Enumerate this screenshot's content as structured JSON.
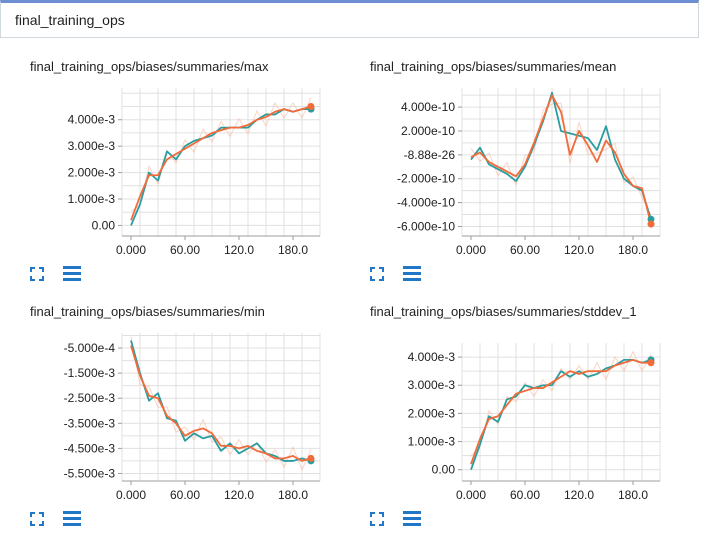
{
  "header": {
    "title": "final_training_ops"
  },
  "colors": {
    "teal": "#2a9d9f",
    "orange": "#f26b3a",
    "orange_faint": "#f7b79e",
    "grid": "#e0e0e0",
    "icon": "#2176c7"
  },
  "cards": [
    {
      "id": "max",
      "title": "final_training_ops/biases/summaries/max",
      "chart_data": {
        "type": "line",
        "x_ticks": [
          0,
          60,
          120,
          180
        ],
        "x_tick_labels": [
          "0.000",
          "60.00",
          "120.0",
          "180.0"
        ],
        "y_ticks": [
          0,
          0.001,
          0.002,
          0.003,
          0.004
        ],
        "y_tick_labels": [
          "0.00",
          "1.000e-3",
          "2.000e-3",
          "3.000e-3",
          "4.000e-3"
        ],
        "xlim": [
          -10,
          210
        ],
        "ylim": [
          -0.0004,
          0.0052
        ],
        "series": [
          {
            "color": "teal",
            "x": [
              0,
              10,
              20,
              30,
              40,
              50,
              60,
              70,
              80,
              90,
              100,
              110,
              120,
              130,
              140,
              150,
              160,
              170,
              180,
              190,
              200
            ],
            "y": [
              0.0,
              0.0008,
              0.002,
              0.0017,
              0.0028,
              0.0025,
              0.003,
              0.0032,
              0.0033,
              0.0034,
              0.0037,
              0.0037,
              0.0037,
              0.0037,
              0.004,
              0.0042,
              0.0042,
              0.0044,
              0.0043,
              0.0044,
              0.0044
            ]
          },
          {
            "color": "orange",
            "x": [
              0,
              10,
              20,
              30,
              40,
              50,
              60,
              70,
              80,
              90,
              100,
              110,
              120,
              130,
              140,
              150,
              160,
              170,
              180,
              190,
              200
            ],
            "y": [
              0.0002,
              0.0011,
              0.0019,
              0.0019,
              0.0025,
              0.0027,
              0.0029,
              0.0031,
              0.0033,
              0.0035,
              0.0036,
              0.0037,
              0.0037,
              0.0038,
              0.004,
              0.0041,
              0.0043,
              0.0044,
              0.0043,
              0.0044,
              0.0045
            ]
          }
        ]
      }
    },
    {
      "id": "mean",
      "title": "final_training_ops/biases/summaries/mean",
      "chart_data": {
        "type": "line",
        "x_ticks": [
          0,
          60,
          120,
          180
        ],
        "x_tick_labels": [
          "0.000",
          "60.00",
          "120.0",
          "180.0"
        ],
        "y_ticks": [
          4e-10,
          2e-10,
          0,
          -2e-10,
          -4e-10,
          -6e-10
        ],
        "y_tick_labels": [
          "4.000e-10",
          "2.000e-10",
          "-8.88e-26",
          "-2.000e-10",
          "-4.000e-10",
          "-6.000e-10"
        ],
        "xlim": [
          -10,
          210
        ],
        "ylim": [
          -6.8e-10,
          5.6e-10
        ],
        "series": [
          {
            "color": "teal",
            "x": [
              0,
              10,
              20,
              30,
              40,
              50,
              60,
              70,
              80,
              90,
              100,
              110,
              120,
              130,
              140,
              150,
              160,
              170,
              180,
              190,
              200
            ],
            "y": [
              -4e-11,
              6e-11,
              -8e-11,
              -1.2e-10,
              -1.6e-10,
              -2.2e-10,
              -1e-10,
              8e-11,
              2.8e-10,
              5.2e-10,
              2e-10,
              1.8e-10,
              1.6e-10,
              1.4e-10,
              4e-11,
              2.4e-10,
              -4e-11,
              -2e-10,
              -2.6e-10,
              -3e-10,
              -5.4e-10
            ]
          },
          {
            "color": "orange",
            "x": [
              0,
              10,
              20,
              30,
              40,
              50,
              60,
              70,
              80,
              90,
              100,
              110,
              120,
              130,
              140,
              150,
              160,
              170,
              180,
              190,
              200
            ],
            "y": [
              -2e-11,
              2e-11,
              -6e-11,
              -1e-10,
              -1.4e-10,
              -1.8e-10,
              -8e-11,
              1e-10,
              3e-10,
              5e-10,
              3.6e-10,
              0.0,
              2e-10,
              8e-11,
              -6e-11,
              1.2e-10,
              2e-11,
              -1.6e-10,
              -2.6e-10,
              -2.8e-10,
              -5.8e-10
            ]
          }
        ]
      }
    },
    {
      "id": "min",
      "title": "final_training_ops/biases/summaries/min",
      "chart_data": {
        "type": "line",
        "x_ticks": [
          0,
          60,
          120,
          180
        ],
        "x_tick_labels": [
          "0.000",
          "60.00",
          "120.0",
          "180.0"
        ],
        "y_ticks": [
          -0.0005,
          -0.0015,
          -0.0025,
          -0.0035,
          -0.0045,
          -0.0055
        ],
        "y_tick_labels": [
          "-5.000e-4",
          "-1.500e-3",
          "-2.500e-3",
          "-3.500e-3",
          "-4.500e-3",
          "-5.500e-3"
        ],
        "xlim": [
          -10,
          210
        ],
        "ylim": [
          -0.0058,
          0.0001
        ],
        "series": [
          {
            "color": "teal",
            "x": [
              0,
              10,
              20,
              30,
              40,
              50,
              60,
              70,
              80,
              90,
              100,
              110,
              120,
              130,
              140,
              150,
              160,
              170,
              180,
              190,
              200
            ],
            "y": [
              -0.0002,
              -0.0015,
              -0.0026,
              -0.0023,
              -0.0033,
              -0.0034,
              -0.0042,
              -0.0039,
              -0.0041,
              -0.004,
              -0.0046,
              -0.0043,
              -0.0047,
              -0.0045,
              -0.0043,
              -0.0047,
              -0.0048,
              -0.005,
              -0.005,
              -0.0049,
              -0.005
            ]
          },
          {
            "color": "orange",
            "x": [
              0,
              10,
              20,
              30,
              40,
              50,
              60,
              70,
              80,
              90,
              100,
              110,
              120,
              130,
              140,
              150,
              160,
              170,
              180,
              190,
              200
            ],
            "y": [
              -0.0004,
              -0.0016,
              -0.0024,
              -0.0025,
              -0.0032,
              -0.0035,
              -0.004,
              -0.0038,
              -0.0037,
              -0.0039,
              -0.0044,
              -0.0044,
              -0.0045,
              -0.0044,
              -0.0046,
              -0.0047,
              -0.0049,
              -0.0049,
              -0.0048,
              -0.005,
              -0.0049
            ]
          }
        ]
      }
    },
    {
      "id": "stddev",
      "title": "final_training_ops/biases/summaries/stddev_1",
      "chart_data": {
        "type": "line",
        "x_ticks": [
          0,
          60,
          120,
          180
        ],
        "x_tick_labels": [
          "0.000",
          "60.00",
          "120.0",
          "180.0"
        ],
        "y_ticks": [
          0,
          0.001,
          0.002,
          0.003,
          0.004
        ],
        "y_tick_labels": [
          "0.00",
          "1.000e-3",
          "2.000e-3",
          "3.000e-3",
          "4.000e-3"
        ],
        "xlim": [
          -10,
          210
        ],
        "ylim": [
          -0.0004,
          0.0045
        ],
        "series": [
          {
            "color": "teal",
            "x": [
              0,
              10,
              20,
              30,
              40,
              50,
              60,
              70,
              80,
              90,
              100,
              110,
              120,
              130,
              140,
              150,
              160,
              170,
              180,
              190,
              200
            ],
            "y": [
              0.0,
              0.0009,
              0.0019,
              0.0017,
              0.0025,
              0.0026,
              0.003,
              0.0029,
              0.003,
              0.003,
              0.0035,
              0.0033,
              0.0035,
              0.0033,
              0.0034,
              0.0036,
              0.0037,
              0.0039,
              0.0039,
              0.0038,
              0.0039
            ]
          },
          {
            "color": "orange",
            "x": [
              0,
              10,
              20,
              30,
              40,
              50,
              60,
              70,
              80,
              90,
              100,
              110,
              120,
              130,
              140,
              150,
              160,
              170,
              180,
              190,
              200
            ],
            "y": [
              0.0002,
              0.0011,
              0.0018,
              0.0019,
              0.0023,
              0.0027,
              0.0028,
              0.0029,
              0.0029,
              0.0031,
              0.0033,
              0.0035,
              0.0034,
              0.0035,
              0.0035,
              0.0035,
              0.0037,
              0.0038,
              0.0039,
              0.0038,
              0.0038
            ]
          }
        ]
      }
    }
  ]
}
